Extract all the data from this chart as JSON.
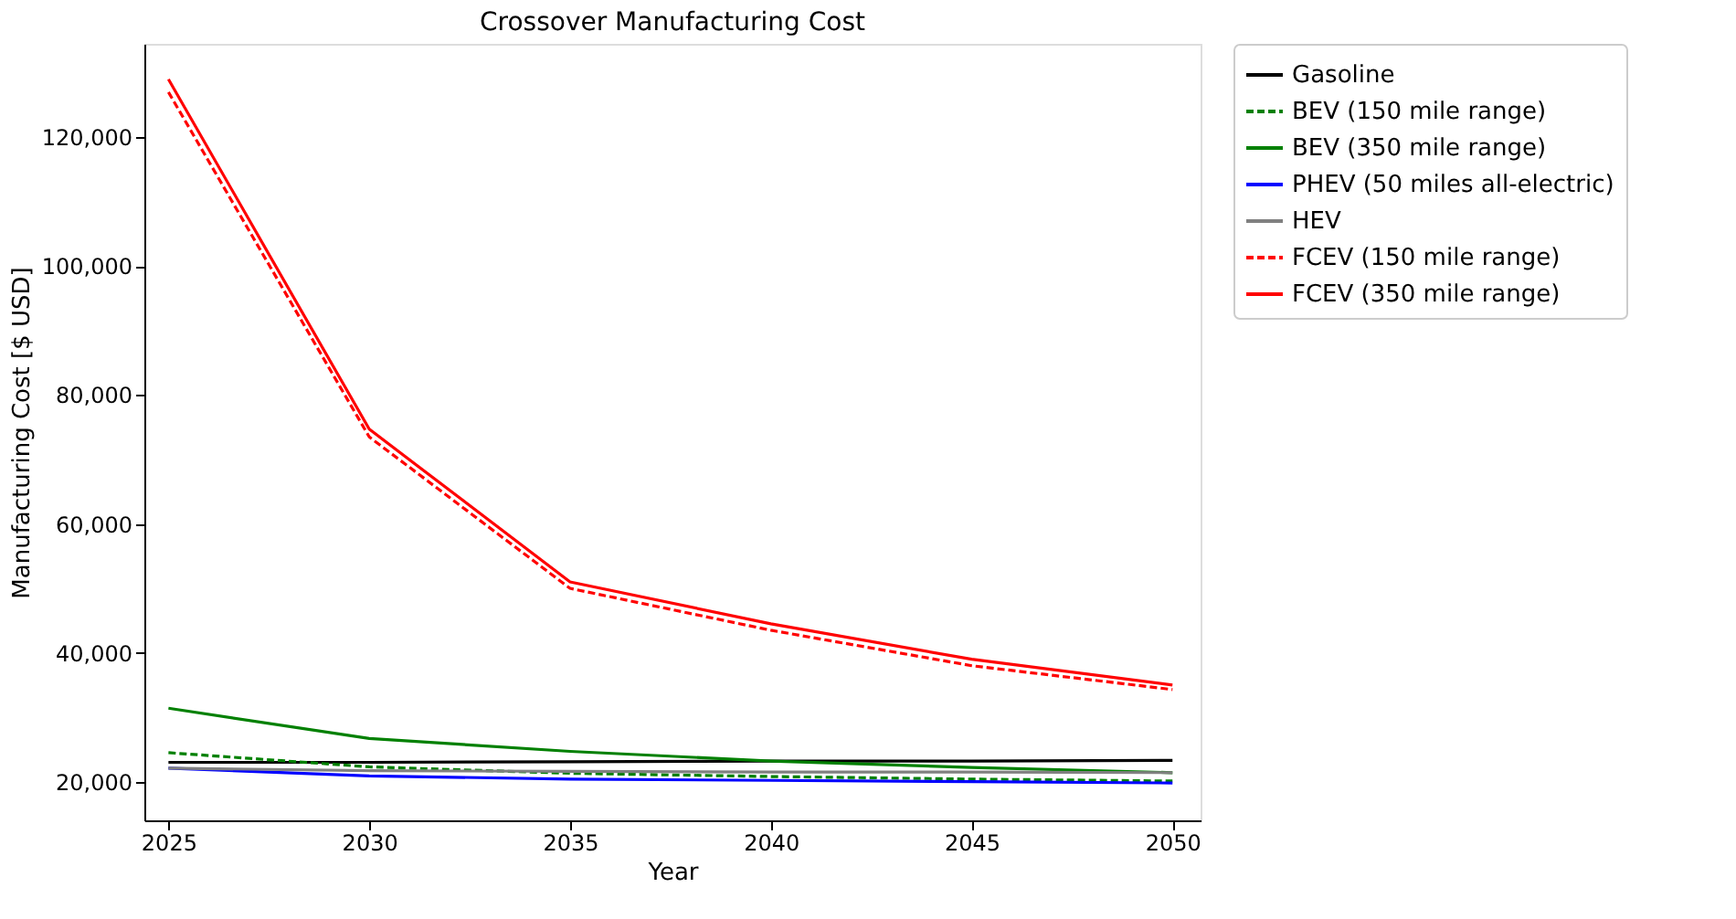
{
  "chart_data": {
    "type": "line",
    "title": "Crossover Manufacturing Cost",
    "xlabel": "Year",
    "ylabel": "Manufacturing Cost [$ USD]",
    "x": [
      2025,
      2030,
      2035,
      2040,
      2045,
      2050
    ],
    "series": [
      {
        "name": "Gasoline",
        "color": "#000000",
        "line_style": "solid",
        "values": [
          23000,
          23000,
          23100,
          23200,
          23200,
          23300
        ]
      },
      {
        "name": "BEV (150 mile range)",
        "color": "#008000",
        "line_style": "dashed",
        "values": [
          24500,
          22300,
          21300,
          20800,
          20400,
          20100
        ]
      },
      {
        "name": "BEV (350 mile range)",
        "color": "#008000",
        "line_style": "solid",
        "values": [
          31400,
          26700,
          24700,
          23200,
          22200,
          21400
        ]
      },
      {
        "name": "PHEV (50 miles all-electric)",
        "color": "#0000ff",
        "line_style": "solid",
        "values": [
          22100,
          20900,
          20400,
          20200,
          20000,
          19800
        ]
      },
      {
        "name": "HEV",
        "color": "#808080",
        "line_style": "solid",
        "values": [
          22100,
          21700,
          21600,
          21500,
          21500,
          21400
        ]
      },
      {
        "name": "FCEV (150 mile range)",
        "color": "#ff0000",
        "line_style": "dashed",
        "values": [
          127000,
          73500,
          50000,
          43500,
          38000,
          34300
        ]
      },
      {
        "name": "FCEV (350 mile range)",
        "color": "#ff0000",
        "line_style": "solid",
        "values": [
          129000,
          74700,
          51000,
          44500,
          39000,
          35000
        ]
      }
    ],
    "xlim": [
      2024.4,
      2050.7
    ],
    "xticks": [
      2025,
      2030,
      2035,
      2040,
      2045,
      2050
    ],
    "ylim": [
      14000,
      134500
    ],
    "yticks": [
      {
        "value": 20000,
        "label": "20,000"
      },
      {
        "value": 40000,
        "label": "40,000"
      },
      {
        "value": 60000,
        "label": "60,000"
      },
      {
        "value": 80000,
        "label": "80,000"
      },
      {
        "value": 100000,
        "label": "100,000"
      },
      {
        "value": 120000,
        "label": "120,000"
      }
    ],
    "grid": false,
    "legend": "right",
    "marker": "none"
  }
}
